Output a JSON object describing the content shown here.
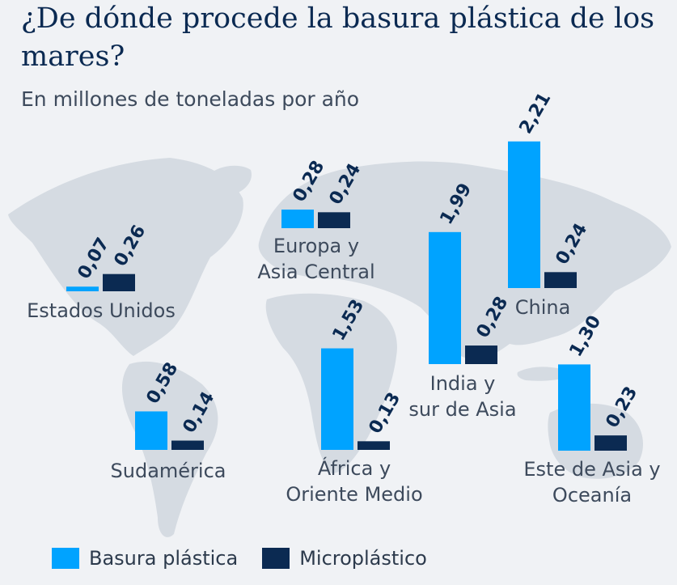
{
  "header": {
    "title": "¿De dónde procede la basura plástica de los mares?",
    "subtitle": "En millones de toneladas por año"
  },
  "colors": {
    "plastic": "#00a3ff",
    "micro": "#0b2a52",
    "map": "#d5dbe2",
    "text": "#3d4a5c",
    "value": "#0b2a52"
  },
  "legend": [
    {
      "label": "Basura plástica",
      "color": "#00a3ff"
    },
    {
      "label": "Microplástico",
      "color": "#0b2a52"
    }
  ],
  "chart_data": {
    "type": "bar",
    "title": "¿De dónde procede la basura plástica de los mares?",
    "subtitle": "En millones de toneladas por año",
    "categories": [
      "Estados Unidos",
      "Europa y Asia Central",
      "Sudamérica",
      "África y Oriente Medio",
      "India y sur de Asia",
      "China",
      "Este de Asia y Oceanía"
    ],
    "category_lines": [
      [
        "Estados Unidos"
      ],
      [
        "Europa y",
        "Asia Central"
      ],
      [
        "Sudamérica"
      ],
      [
        "África y",
        "Oriente Medio"
      ],
      [
        "India y",
        "sur de Asia"
      ],
      [
        "China"
      ],
      [
        "Este de Asia y",
        "Oceanía"
      ]
    ],
    "series": [
      {
        "name": "Basura plástica",
        "values": [
          0.07,
          0.28,
          0.58,
          1.53,
          1.99,
          2.21,
          1.3
        ],
        "labels": [
          "0,07",
          "0,28",
          "0,58",
          "1,53",
          "1,99",
          "2,21",
          "1,30"
        ]
      },
      {
        "name": "Microplástico",
        "values": [
          0.26,
          0.24,
          0.14,
          0.13,
          0.28,
          0.24,
          0.23
        ],
        "labels": [
          "0,26",
          "0,24",
          "0,14",
          "0,13",
          "0,28",
          "0,24",
          "0,23"
        ]
      }
    ],
    "legend_position": "bottom-left",
    "grid": false
  }
}
